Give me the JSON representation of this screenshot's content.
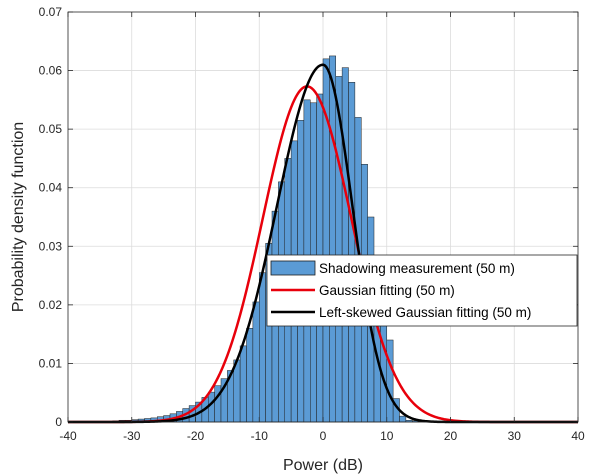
{
  "chart_data": {
    "type": "bar",
    "xlabel": "Power (dB)",
    "ylabel": "Probability density function",
    "xlim": [
      -40,
      40
    ],
    "ylim": [
      0,
      0.07
    ],
    "xticks": [
      -40,
      -30,
      -20,
      -10,
      0,
      10,
      20,
      30,
      40
    ],
    "yticks": [
      0,
      0.01,
      0.02,
      0.03,
      0.04,
      0.05,
      0.06,
      0.07
    ],
    "ytick_labels": [
      "0",
      "0.01",
      "0.02",
      "0.03",
      "0.04",
      "0.05",
      "0.06",
      "0.07"
    ],
    "grid": true,
    "legend_position": "right",
    "histogram": {
      "name": "Shadowing measurement (50 m)",
      "color": "#5b9bd5",
      "bin_width": 1,
      "bin_start": -33,
      "values": [
        0.0002,
        0.0003,
        0.0003,
        0.0004,
        0.0005,
        0.0006,
        0.0007,
        0.0009,
        0.0011,
        0.0014,
        0.0018,
        0.0023,
        0.0028,
        0.0034,
        0.0042,
        0.0051,
        0.0062,
        0.0074,
        0.0088,
        0.0106,
        0.013,
        0.016,
        0.0205,
        0.0255,
        0.0305,
        0.036,
        0.041,
        0.045,
        0.048,
        0.0515,
        0.055,
        0.0545,
        0.056,
        0.062,
        0.0625,
        0.059,
        0.0605,
        0.058,
        0.052,
        0.044,
        0.035,
        0.028,
        0.023,
        0.014,
        0.004,
        0.001,
        0.0003,
        0.0002,
        0.0001
      ]
    },
    "series": [
      {
        "name": "Gaussian fitting (50 m)",
        "color": "#e8000b",
        "type": "gaussian",
        "mean": -2.5,
        "std": 6.95,
        "peak": 0.0573
      },
      {
        "name": "Left-skewed Gaussian fitting (50 m)",
        "color": "#000000",
        "type": "left-skewed-gaussian",
        "mode": 0,
        "peak": 0.061,
        "std_left": 7.2,
        "std_right": 4.6
      }
    ]
  }
}
